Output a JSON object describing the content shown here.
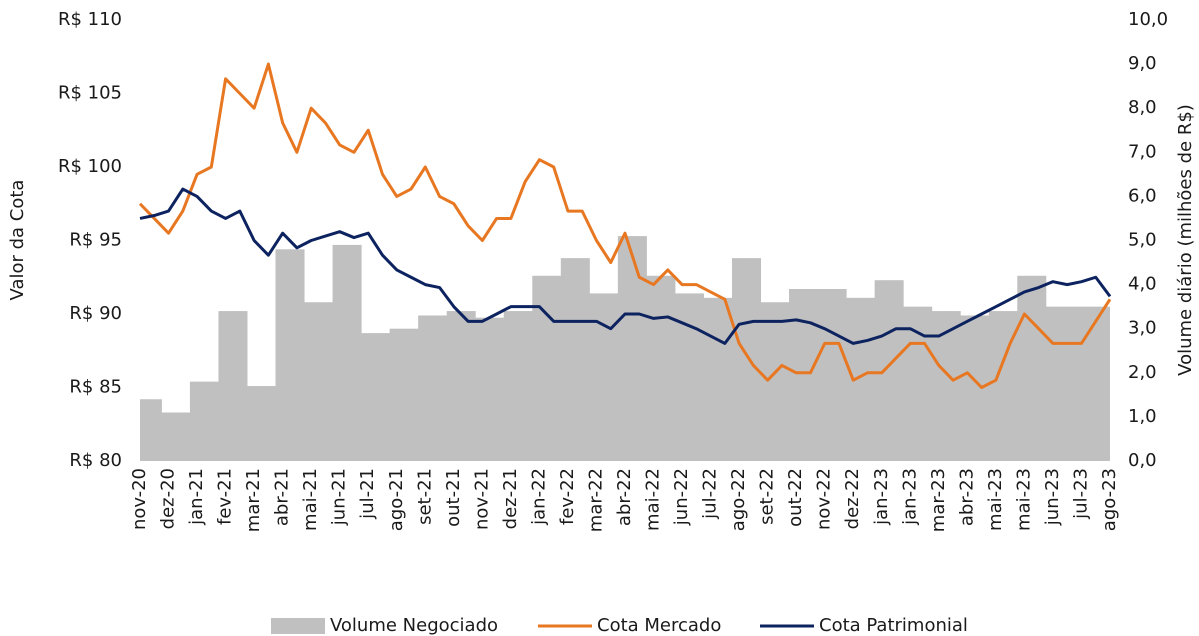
{
  "chart_data": {
    "type": "line",
    "categories": [
      "nov-20",
      null,
      "dez-20",
      null,
      "jan-21",
      null,
      "fev-21",
      null,
      "mar-21",
      null,
      "abr-21",
      null,
      "mai-21",
      null,
      "jun-21",
      null,
      "jul-21",
      null,
      "ago-21",
      null,
      "set-21",
      null,
      "out-21",
      null,
      "nov-21",
      null,
      "dez-21",
      null,
      "jan-22",
      null,
      "fev-22",
      null,
      "mar-22",
      null,
      "abr-22",
      null,
      "mai-22",
      null,
      "jun-22",
      null,
      "jul-22",
      null,
      "ago-22",
      null,
      "set-22",
      null,
      "out-22",
      null,
      "nov-22",
      null,
      "dez-22",
      null,
      "jan-23",
      null,
      "jan-23",
      null,
      "mar-23",
      null,
      "abr-23",
      null,
      "mai-23",
      null,
      "mai-23",
      null,
      "jun-23",
      null,
      "jul-23",
      null,
      "ago-23"
    ],
    "series": [
      {
        "name": "Volume Negociado",
        "color": "#c0c0c0",
        "kind": "area",
        "axis": "y2",
        "values": [
          1.4,
          1.4,
          1.1,
          1.1,
          1.8,
          1.8,
          3.4,
          3.4,
          1.7,
          1.7,
          4.8,
          4.8,
          3.6,
          3.6,
          4.9,
          4.9,
          2.9,
          2.9,
          3.0,
          3.0,
          3.3,
          3.3,
          3.4,
          3.4,
          3.25,
          3.25,
          3.4,
          3.4,
          4.2,
          4.2,
          4.6,
          4.6,
          3.8,
          3.8,
          5.1,
          5.1,
          4.2,
          4.2,
          3.8,
          3.8,
          3.7,
          3.7,
          4.6,
          4.6,
          3.6,
          3.6,
          3.9,
          3.9,
          3.9,
          3.9,
          3.7,
          3.7,
          4.1,
          4.1,
          3.5,
          3.5,
          3.4,
          3.4,
          3.3,
          3.3,
          3.4,
          3.4,
          4.2,
          4.2,
          3.5,
          3.5,
          3.5,
          3.5,
          3.5
        ]
      },
      {
        "name": "Cota Mercado",
        "color": "#e87722",
        "values": [
          97.5,
          96.5,
          95.5,
          97,
          99.5,
          100,
          106,
          105,
          104,
          107,
          103,
          101,
          104,
          103,
          101.5,
          101,
          102.5,
          99.5,
          98,
          98.5,
          100,
          98,
          97.5,
          96,
          95,
          96.5,
          96.5,
          99,
          100.5,
          100,
          97,
          97,
          95,
          93.5,
          95.5,
          92.5,
          92,
          93,
          92,
          92,
          91.5,
          91,
          88,
          86.5,
          85.5,
          86.5,
          86,
          86,
          88,
          88,
          85.5,
          86,
          86,
          87,
          88,
          88,
          86.5,
          85.5,
          86,
          85,
          85.5,
          88,
          90,
          89,
          88,
          88,
          88,
          89.5,
          91
        ]
      },
      {
        "name": "Cota Patrimonial",
        "color": "#0d2360",
        "values": [
          96.5,
          96.7,
          97,
          98.5,
          98,
          97,
          96.5,
          97,
          95,
          94,
          95.5,
          94.5,
          95,
          95.3,
          95.6,
          95.2,
          95.5,
          94,
          93,
          92.5,
          92,
          91.8,
          90.5,
          89.5,
          89.5,
          90,
          90.5,
          90.5,
          90.5,
          89.5,
          89.5,
          89.5,
          89.5,
          89,
          90,
          90,
          89.7,
          89.8,
          89.4,
          89,
          88.5,
          88,
          89.3,
          89.5,
          89.5,
          89.5,
          89.6,
          89.4,
          89,
          88.5,
          88,
          88.2,
          88.5,
          89,
          89,
          88.5,
          88.5,
          89,
          89.5,
          90,
          90.5,
          91,
          91.5,
          91.8,
          92.2,
          92,
          92.2,
          92.5,
          91.2
        ]
      }
    ],
    "ylabel": "Valor da Cota",
    "y2label": "Volume diário (milhões de R$)",
    "ylim": [
      80,
      110
    ],
    "yticks": [
      {
        "value": 80,
        "label": "R$ 80"
      },
      {
        "value": 85,
        "label": "R$ 85"
      },
      {
        "value": 90,
        "label": "R$ 90"
      },
      {
        "value": 95,
        "label": "R$ 95"
      },
      {
        "value": 100,
        "label": "R$ 100"
      },
      {
        "value": 105,
        "label": "R$ 105"
      },
      {
        "value": 110,
        "label": "R$ 110"
      }
    ],
    "y2lim": [
      0,
      10
    ],
    "y2ticks": [
      {
        "value": 0,
        "label": "0,0"
      },
      {
        "value": 1,
        "label": "1,0"
      },
      {
        "value": 2,
        "label": "2,0"
      },
      {
        "value": 3,
        "label": "3,0"
      },
      {
        "value": 4,
        "label": "4,0"
      },
      {
        "value": 5,
        "label": "5,0"
      },
      {
        "value": 6,
        "label": "6,0"
      },
      {
        "value": 7,
        "label": "7,0"
      },
      {
        "value": 8,
        "label": "8,0"
      },
      {
        "value": 9,
        "label": "9,0"
      },
      {
        "value": 10,
        "label": "10,0"
      }
    ],
    "legend": "bottom"
  }
}
